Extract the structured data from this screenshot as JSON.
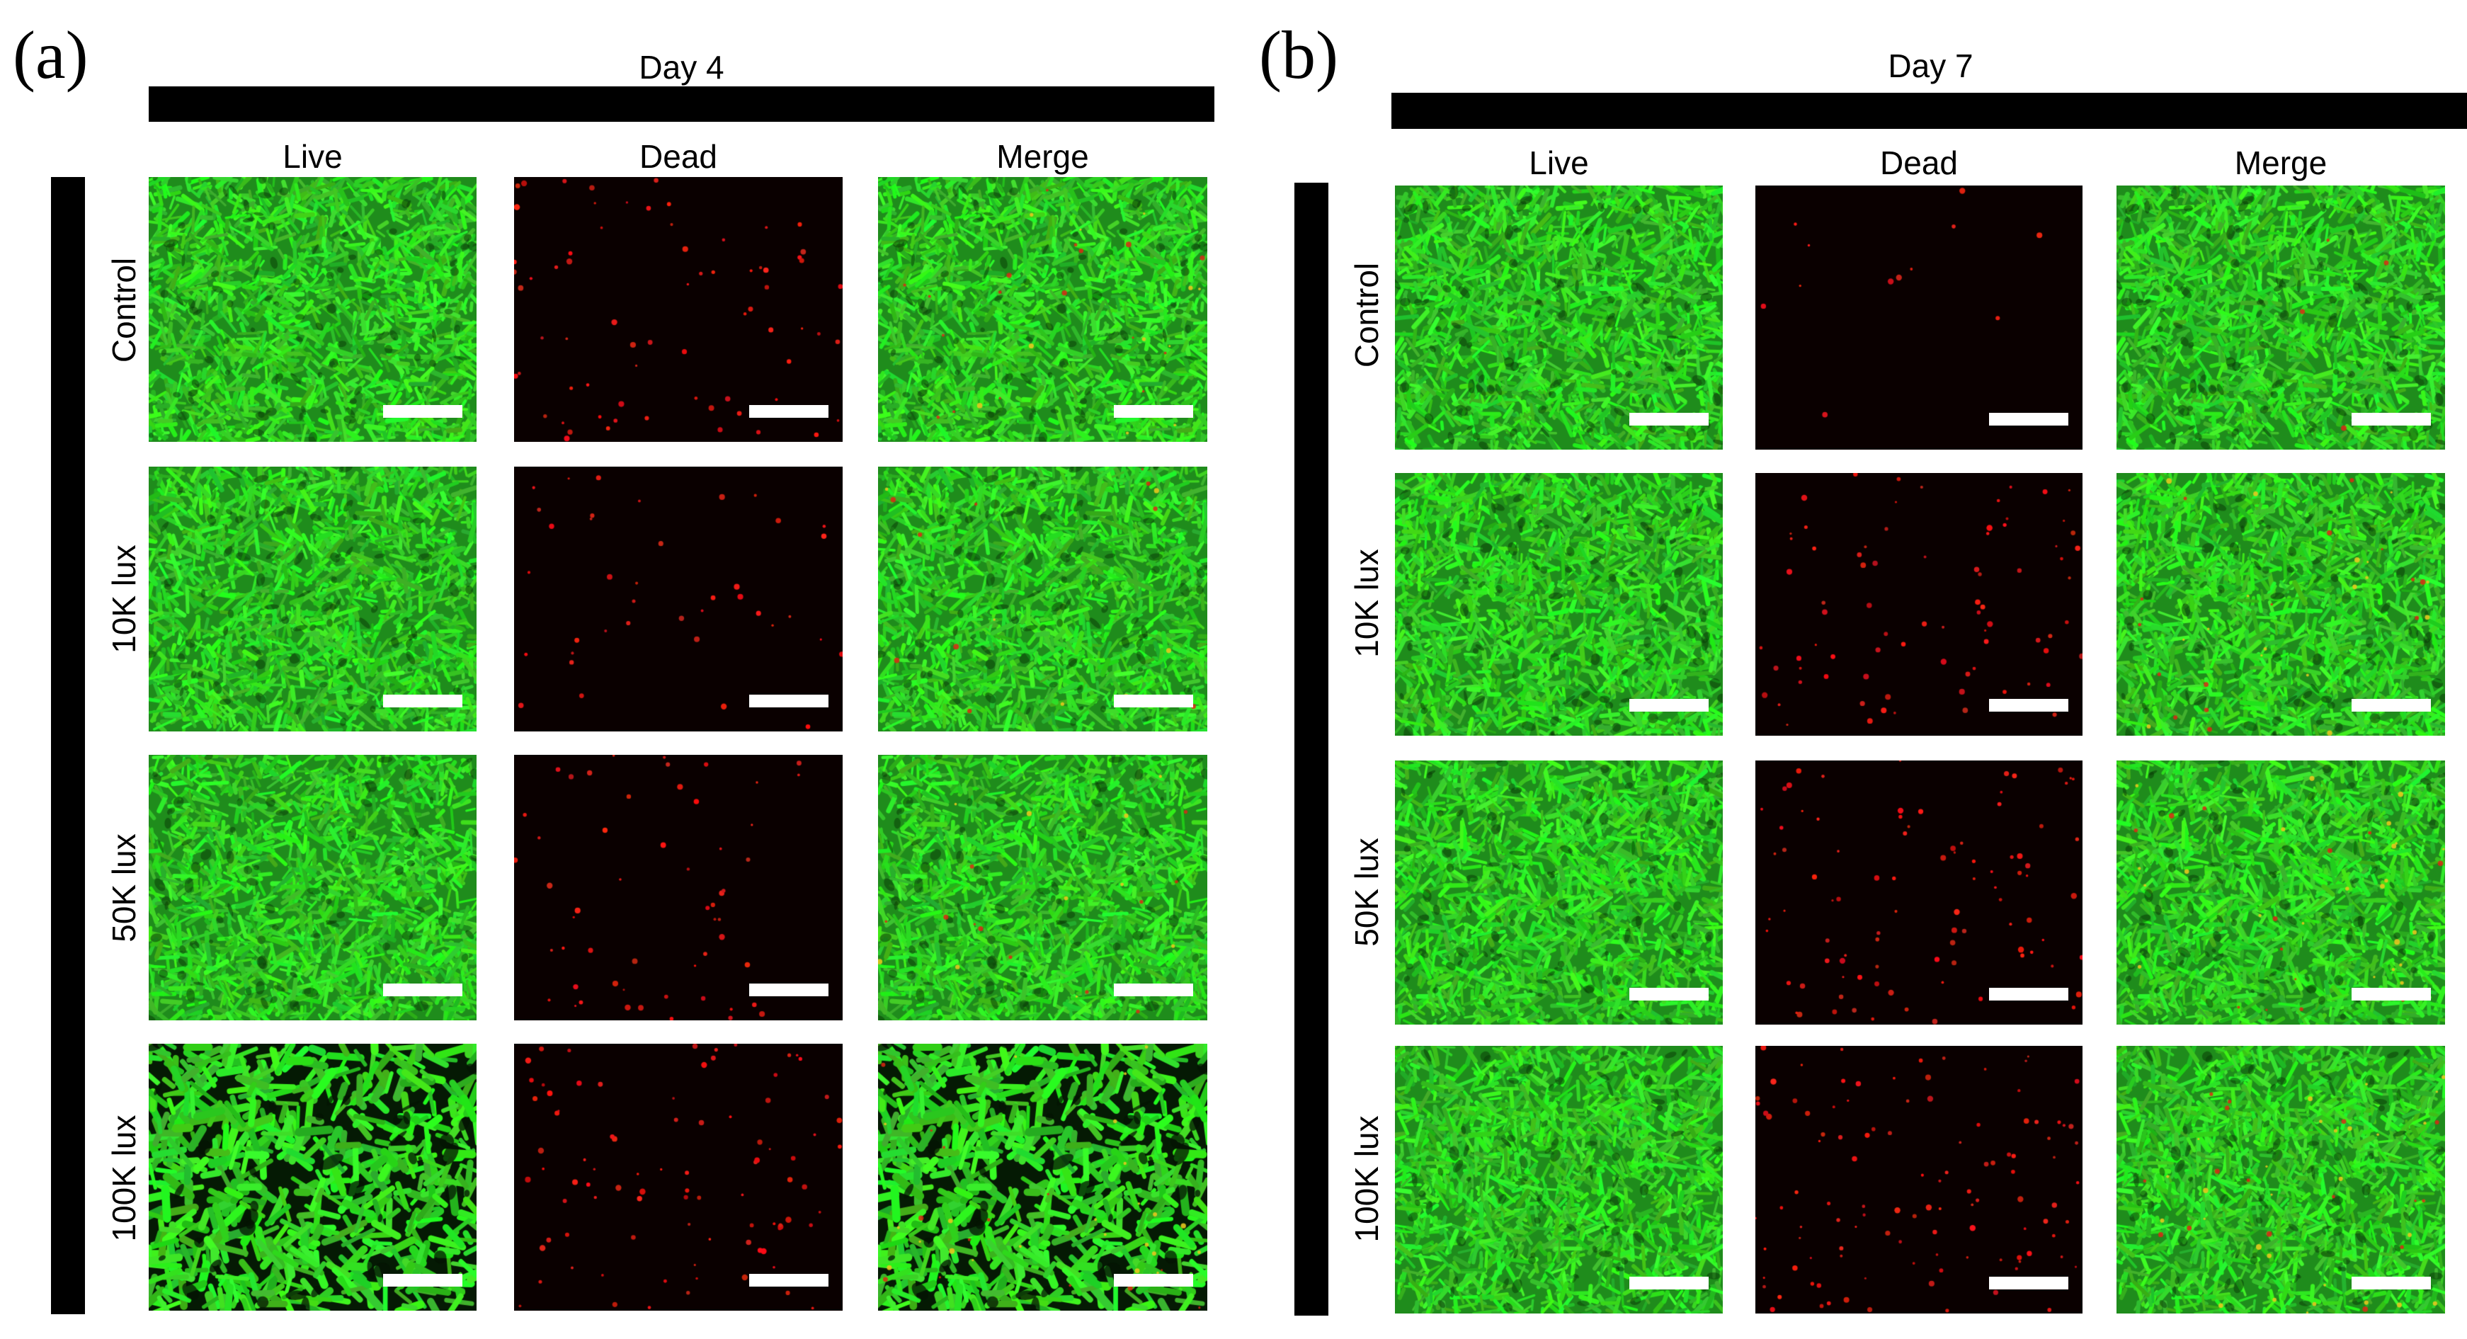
{
  "panels": [
    {
      "label": "(a)",
      "title": "Day 4",
      "columns": [
        "Live",
        "Dead",
        "Merge"
      ],
      "rows": [
        "Control",
        "10K lux",
        "50K lux",
        "100K lux"
      ]
    },
    {
      "label": "(b)",
      "title": "Day 7",
      "columns": [
        "Live",
        "Dead",
        "Merge"
      ],
      "rows": [
        "Control",
        "10K lux",
        "50K lux",
        "100K lux"
      ]
    }
  ],
  "colors": {
    "live_green": "#39e13a",
    "dead_red": "#e01818",
    "background_dark": "#060100",
    "bar_black": "#000000",
    "scale_bar": "#ffffff"
  }
}
